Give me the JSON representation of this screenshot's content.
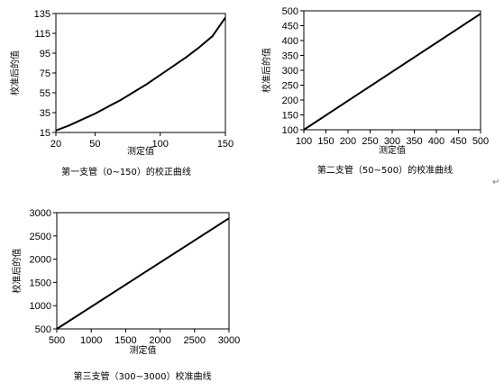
{
  "chart_data": [
    {
      "type": "line",
      "caption": "第一支管（0~150）的校正曲线",
      "xlabel": "测定值",
      "ylabel": "校准后的值",
      "xlim": [
        20,
        150
      ],
      "ylim": [
        15,
        135
      ],
      "xticks": [
        20,
        50,
        100,
        150
      ],
      "yticks": [
        15,
        35,
        55,
        75,
        95,
        115,
        135
      ],
      "grid": false,
      "series": [
        {
          "x": [
            20,
            30,
            40,
            50,
            60,
            70,
            80,
            90,
            100,
            110,
            120,
            130,
            140,
            150
          ],
          "y": [
            17,
            22,
            28,
            34,
            41,
            48,
            56,
            64,
            73,
            82,
            91,
            101,
            112,
            131
          ]
        }
      ]
    },
    {
      "type": "line",
      "caption": "第二支管（50~500）的校准曲线",
      "xlabel": "测定值",
      "ylabel": "校准后的值",
      "xlim": [
        100,
        500
      ],
      "ylim": [
        100,
        500
      ],
      "xticks": [
        100,
        150,
        200,
        250,
        300,
        350,
        400,
        450,
        500
      ],
      "yticks": [
        100,
        150,
        200,
        250,
        300,
        350,
        400,
        450,
        500
      ],
      "grid": false,
      "series": [
        {
          "x": [
            100,
            500
          ],
          "y": [
            100,
            490
          ]
        }
      ]
    },
    {
      "type": "line",
      "caption": "第三支管（300~3000）校准曲线",
      "xlabel": "测定值",
      "ylabel": "校准后的值",
      "xlim": [
        500,
        3000
      ],
      "ylim": [
        500,
        3000
      ],
      "xticks": [
        500,
        1000,
        1500,
        2000,
        2500,
        3000
      ],
      "yticks": [
        500,
        1000,
        1500,
        2000,
        2500,
        3000
      ],
      "grid": false,
      "series": [
        {
          "x": [
            500,
            3000
          ],
          "y": [
            500,
            2880
          ]
        }
      ]
    }
  ],
  "paragraph_mark": "↵"
}
